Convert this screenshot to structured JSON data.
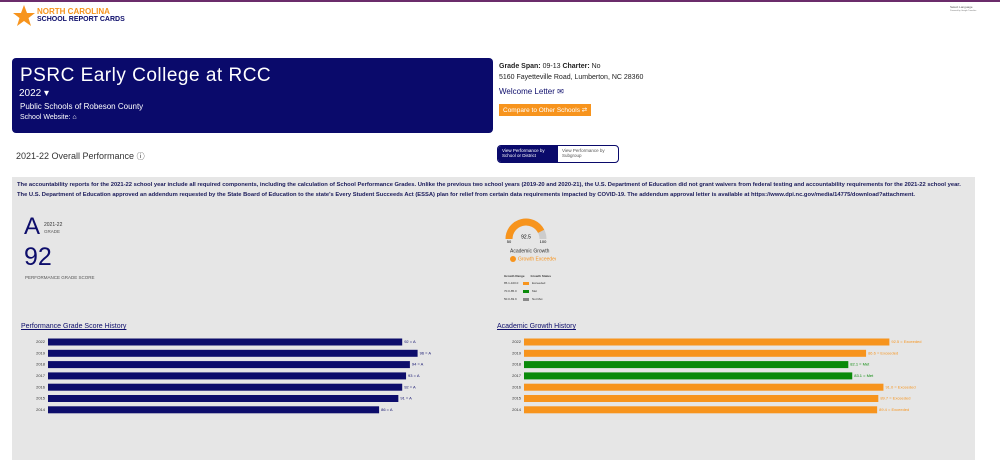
{
  "header": {
    "logo_line1": "NORTH CAROLINA",
    "logo_line2": "SCHOOL REPORT CARDS",
    "language": "Select Language",
    "powered": "Powered by Google Translate"
  },
  "school": {
    "name": "PSRC Early College at RCC",
    "year": "2022",
    "district": "Public Schools of Robeson County",
    "website_label": "School Website:"
  },
  "info": {
    "grade_span_label": "Grade Span:",
    "grade_span": "09-13",
    "charter_label": "Charter:",
    "charter": "No",
    "address": "5160 Fayetteville Road, Lumberton, NC 28360",
    "welcome": "Welcome Letter",
    "compare": "Compare to Other Schools"
  },
  "performance": {
    "title": "2021-22 Overall Performance",
    "toggle": [
      "View Performance by School or District",
      "View Performance by Subgroup"
    ],
    "notice": "The accountability reports for the 2021-22 school year include all required components, including the calculation of School Performance Grades. Unlike the previous two school years (2019-20 and 2020-21), the U.S. Department of Education did not grant waivers from federal testing and accountability requirements for the 2021-22 school year. The U.S. Department of Education approved an addendum requested by the State Board of Education to the state's Every Student Succeeds Act (ESSA) plan for relief from certain data requirements impacted by COVID-19. The addendum approval letter is available at https://www.dpi.nc.gov/media/14775/download?attachment.",
    "grade": "A",
    "grade_year": "2021-22",
    "grade_label": "GRADE",
    "score": 92,
    "score_label": "PERFORMANCE GRADE SCORE"
  },
  "growth": {
    "value": 92.5,
    "min": 50,
    "max": 100,
    "label": "Academic Growth",
    "status": "Growth Exceeded",
    "color": "#f7941d",
    "legend_headers": [
      "Growth Range",
      "Growth Status"
    ],
    "legend": [
      {
        "range": "85.1-100.0",
        "status": "Exceeded",
        "color": "#f7941d"
      },
      {
        "range": "70.0-85.0",
        "status": "Met",
        "color": "#0a8a0a"
      },
      {
        "range": "50.0-69.9",
        "status": "Not Met",
        "color": "#888888"
      }
    ]
  },
  "chart_data": [
    {
      "type": "bar",
      "title": "Performance Grade Score History",
      "categories": [
        "2022",
        "2019",
        "2018",
        "2017",
        "2016",
        "2015",
        "2014"
      ],
      "values": [
        92,
        96,
        94,
        93,
        92,
        91,
        86
      ],
      "value_labels": [
        "92 = A",
        "96 = A",
        "94 = A",
        "93 = A",
        "92 = A",
        "91 = A",
        "86 = A"
      ],
      "colors": [
        "#0d0d6b",
        "#0d0d6b",
        "#0d0d6b",
        "#0d0d6b",
        "#0d0d6b",
        "#0d0d6b",
        "#0d0d6b"
      ],
      "xlim": [
        0,
        100
      ]
    },
    {
      "type": "bar",
      "title": "Academic Growth History",
      "categories": [
        "2022",
        "2019",
        "2018",
        "2017",
        "2016",
        "2015",
        "2014"
      ],
      "values": [
        92.5,
        86.6,
        82.1,
        83.1,
        91.0,
        89.7,
        89.4
      ],
      "value_labels": [
        "92.5 = Exceeded",
        "86.6 = Exceeded",
        "82.1 = Met",
        "83.1 = Met",
        "91.0 = Exceeded",
        "89.7 = Exceeded",
        "89.4 = Exceeded"
      ],
      "colors": [
        "#f7941d",
        "#f7941d",
        "#0a8a0a",
        "#0a8a0a",
        "#f7941d",
        "#f7941d",
        "#f7941d"
      ],
      "xlim": [
        0,
        100
      ]
    }
  ]
}
